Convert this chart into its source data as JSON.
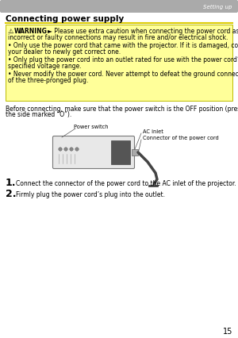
{
  "bg_color": "#ffffff",
  "header_bar_color": "#aaaaaa",
  "header_text": "Setting up",
  "header_text_color": "#ffffff",
  "title": "Connecting power supply",
  "title_color": "#000000",
  "warning_box_bg": "#ffff99",
  "warning_box_border": "#cccc00",
  "warning_line1": "⚠WARNING  ► Please use extra caution when connecting the power cord as",
  "warning_line2": "incorrect or faulty connections may result in fire and/or electrical shock.",
  "bullet1_line1": "• Only use the power cord that came with the projector. If it is damaged, contact",
  "bullet1_line2": "your dealer to newly get correct one.",
  "bullet2_line1": "• Only plug the power cord into an outlet rated for use with the power cord’s",
  "bullet2_line2": "specified voltage range.",
  "bullet3_line1": "• Never modify the power cord. Never attempt to defeat the ground connection",
  "bullet3_line2": "of the three-pronged plug.",
  "before_text1": "Before connecting, make sure that the power switch is the OFF position (pressed",
  "before_text2": "the side marked “O”).",
  "label_power_switch": "Power switch",
  "label_ac_inlet": "AC inlet",
  "label_connector": "Connector of the power cord",
  "step1": "Connect the connector of the power cord to the AC inlet of the projector.",
  "step2": "Firmly plug the power cord’s plug into the outlet.",
  "page_number": "15",
  "font_size_title": 7.5,
  "font_size_header": 5.0,
  "font_size_body": 5.5,
  "font_size_warning": 5.5,
  "font_size_label": 4.8,
  "font_size_step_num": 9.0,
  "font_size_page": 7.0
}
